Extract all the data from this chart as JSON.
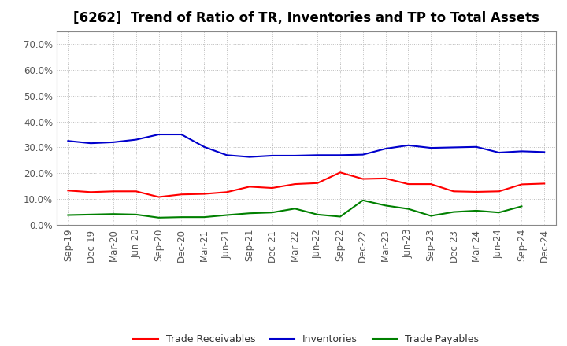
{
  "title": "[6262]  Trend of Ratio of TR, Inventories and TP to Total Assets",
  "x_labels": [
    "Sep-19",
    "Dec-19",
    "Mar-20",
    "Jun-20",
    "Sep-20",
    "Dec-20",
    "Mar-21",
    "Jun-21",
    "Sep-21",
    "Dec-21",
    "Mar-22",
    "Jun-22",
    "Sep-22",
    "Dec-22",
    "Mar-23",
    "Jun-23",
    "Sep-23",
    "Dec-23",
    "Mar-24",
    "Jun-24",
    "Sep-24",
    "Dec-24"
  ],
  "trade_receivables": [
    0.133,
    0.127,
    0.13,
    0.13,
    0.108,
    0.118,
    0.12,
    0.127,
    0.148,
    0.143,
    0.158,
    0.162,
    0.203,
    0.178,
    0.18,
    0.158,
    0.158,
    0.13,
    0.128,
    0.13,
    0.157,
    0.16
  ],
  "inventories": [
    0.325,
    0.316,
    0.32,
    0.33,
    0.35,
    0.35,
    0.302,
    0.27,
    0.263,
    0.268,
    0.268,
    0.27,
    0.27,
    0.272,
    0.295,
    0.308,
    0.298,
    0.3,
    0.302,
    0.28,
    0.285,
    0.282
  ],
  "trade_payables": [
    0.038,
    0.04,
    0.042,
    0.04,
    0.028,
    0.03,
    0.03,
    0.038,
    0.045,
    0.048,
    0.063,
    0.04,
    0.032,
    0.095,
    0.075,
    0.062,
    0.035,
    0.05,
    0.055,
    0.048,
    0.072,
    null
  ],
  "tr_color": "#ff0000",
  "inv_color": "#0000cc",
  "tp_color": "#008000",
  "background_color": "#ffffff",
  "grid_color": "#bbbbbb",
  "tick_color": "#555555",
  "ylim": [
    0.0,
    0.75
  ],
  "yticks": [
    0.0,
    0.1,
    0.2,
    0.3,
    0.4,
    0.5,
    0.6,
    0.7
  ],
  "title_fontsize": 12,
  "tick_fontsize": 8.5,
  "legend_fontsize": 9
}
